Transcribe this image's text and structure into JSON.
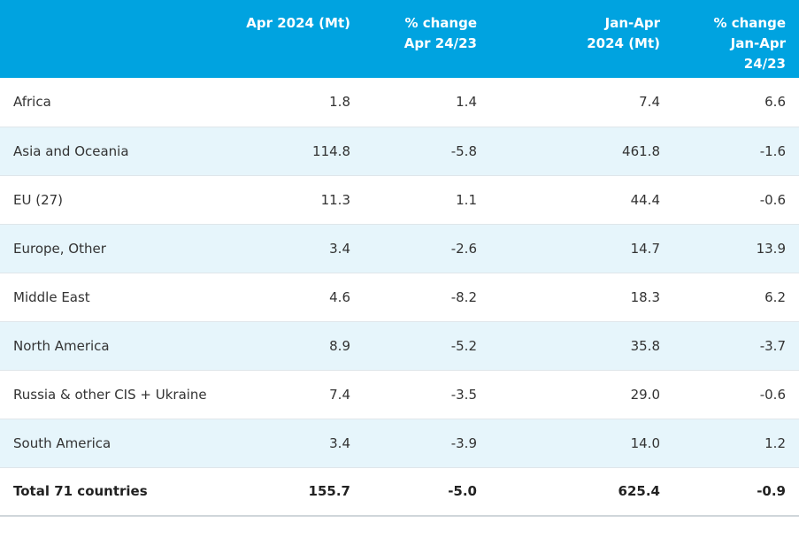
{
  "table": {
    "headers": [
      "",
      "Apr 2024 (Mt)",
      "% change\nApr 24/23",
      "Jan-Apr\n2024 (Mt)",
      "% change\nJan-Apr\n24/23"
    ],
    "rows": [
      [
        "Africa",
        "1.8",
        "1.4",
        "7.4",
        "6.6"
      ],
      [
        "Asia and Oceania",
        "114.8",
        "-5.8",
        "461.8",
        "-1.6"
      ],
      [
        "EU (27)",
        "11.3",
        "1.1",
        "44.4",
        "-0.6"
      ],
      [
        "Europe, Other",
        "3.4",
        "-2.6",
        "14.7",
        "13.9"
      ],
      [
        "Middle East",
        "4.6",
        "-8.2",
        "18.3",
        "6.2"
      ],
      [
        "North America",
        "8.9",
        "-5.2",
        "35.8",
        "-3.7"
      ],
      [
        "Russia & other CIS + Ukraine",
        "7.4",
        "-3.5",
        "29.0",
        "-0.6"
      ],
      [
        "South America",
        "3.4",
        "-3.9",
        "14.0",
        "1.2"
      ]
    ],
    "total": [
      "Total 71 countries",
      "155.7",
      "-5.0",
      "625.4",
      "-0.9"
    ]
  },
  "colors": {
    "header_bg": "#00a3e0",
    "header_text": "#ffffff",
    "alt_row_bg": "#e6f5fb",
    "row_border": "#dfe6ea"
  }
}
